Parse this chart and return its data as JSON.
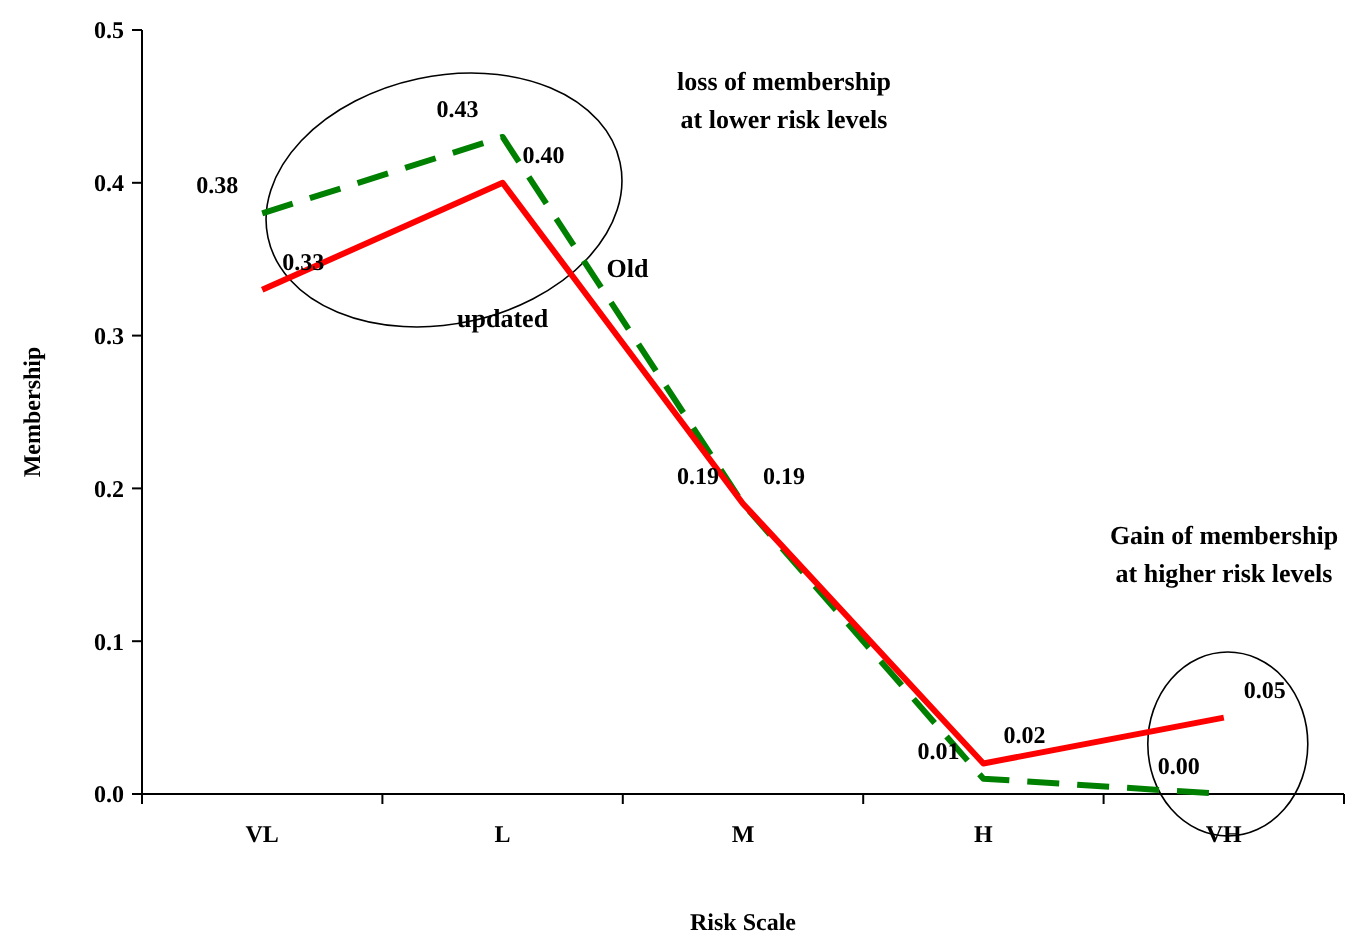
{
  "chart_data": {
    "type": "line",
    "xlabel": "Risk Scale",
    "ylabel": "Membership",
    "categories": [
      "VL",
      "L",
      "M",
      "H",
      "VH"
    ],
    "series": [
      {
        "name": "updated",
        "color": "#ff0000",
        "line_style": "solid",
        "values": [
          0.33,
          0.4,
          0.19,
          0.02,
          0.05
        ],
        "value_labels": [
          "0.33",
          "0.40",
          "0.19",
          "0.02",
          "0.05"
        ]
      },
      {
        "name": "Old",
        "color": "#008000",
        "line_style": "dashed",
        "values": [
          0.38,
          0.43,
          0.19,
          0.01,
          0.0
        ],
        "value_labels": [
          "0.38",
          "0.43",
          "0.19",
          "0.01",
          "0.00"
        ]
      }
    ],
    "ylim": [
      0,
      0.5
    ],
    "yticks": [
      {
        "value": 0,
        "label": "0.0"
      },
      {
        "value": 0.1,
        "label": "0.1"
      },
      {
        "value": 0.2,
        "label": "0.2"
      },
      {
        "value": 0.3,
        "label": "0.3"
      },
      {
        "value": 0.4,
        "label": "0.4"
      },
      {
        "value": 0.5,
        "label": "0.5"
      }
    ],
    "grid": false,
    "marker": "none",
    "annotations": [
      "loss of membership\nat lower risk levels",
      "Gain of membership\nat higher risk levels"
    ]
  }
}
